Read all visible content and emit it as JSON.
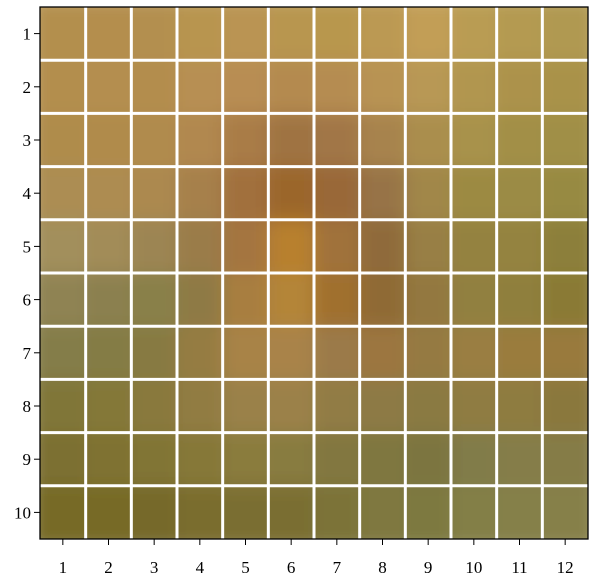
{
  "grid": {
    "rows": 10,
    "cols": 12,
    "row_labels": [
      "1",
      "2",
      "3",
      "4",
      "5",
      "6",
      "7",
      "8",
      "9",
      "10"
    ],
    "col_labels": [
      "1",
      "2",
      "3",
      "4",
      "5",
      "6",
      "7",
      "8",
      "9",
      "10",
      "11",
      "12"
    ],
    "grid_line_color": "#ffffff",
    "frame_color": "#000000",
    "cell_colors": [
      [
        "#b38f4e",
        "#b48e4e",
        "#b38f4f",
        "#b89550",
        "#ba9453",
        "#b8964f",
        "#b8974e",
        "#bb9952",
        "#c29e57",
        "#b99c53",
        "#b49a51",
        "#b09951"
      ],
      [
        "#b38e4e",
        "#b48e4f",
        "#b38d4e",
        "#b78f52",
        "#b88d53",
        "#b48a4f",
        "#b58c51",
        "#b89353",
        "#b89855",
        "#b19650",
        "#ac924b",
        "#a9924a"
      ],
      [
        "#af8c4c",
        "#b08b4c",
        "#b08b4e",
        "#b18850",
        "#a97c47",
        "#9f7342",
        "#a17646",
        "#a7834d",
        "#aa8e4e",
        "#a8924b",
        "#a28f47",
        "#a08f46"
      ],
      [
        "#ac8d53",
        "#ad8c51",
        "#ac894f",
        "#a6804c",
        "#a16f3e",
        "#9b662a",
        "#996837",
        "#977346",
        "#a18748",
        "#9c8a42",
        "#9b8b44",
        "#978a43"
      ],
      [
        "#a28f5c",
        "#a28c58",
        "#9c8552",
        "#9a7c4a",
        "#a4753f",
        "#b8802f",
        "#a0723a",
        "#8f6b3a",
        "#987f45",
        "#948240",
        "#948341",
        "#8c7f3a"
      ],
      [
        "#8f8353",
        "#8b8050",
        "#898049",
        "#8e7a45",
        "#a87e41",
        "#b48539",
        "#a0702f",
        "#8f6a34",
        "#937840",
        "#918040",
        "#8f7f3c",
        "#8a7a36"
      ],
      [
        "#847d49",
        "#847b44",
        "#877a42",
        "#957c43",
        "#a88347",
        "#a9834a",
        "#9b7a48",
        "#9c763f",
        "#957a42",
        "#9a7e43",
        "#9a7b3e",
        "#997a3c"
      ],
      [
        "#807638",
        "#847839",
        "#89793e",
        "#917c43",
        "#9a8149",
        "#9b8149",
        "#917b45",
        "#8d7a45",
        "#8a7a42",
        "#8f7c43",
        "#8e7b41",
        "#8a783e"
      ],
      [
        "#7c7030",
        "#7f7232",
        "#817434",
        "#867838",
        "#8a7b3e",
        "#887b3f",
        "#827740",
        "#7f7741",
        "#7b7540",
        "#817b48",
        "#857d48",
        "#857c46"
      ],
      [
        "#776a28",
        "#776a28",
        "#76692a",
        "#7a6d2e",
        "#7a6e31",
        "#7a6e33",
        "#7c7339",
        "#7f783f",
        "#7d7941",
        "#837f47",
        "#85804a",
        "#868049"
      ]
    ]
  }
}
